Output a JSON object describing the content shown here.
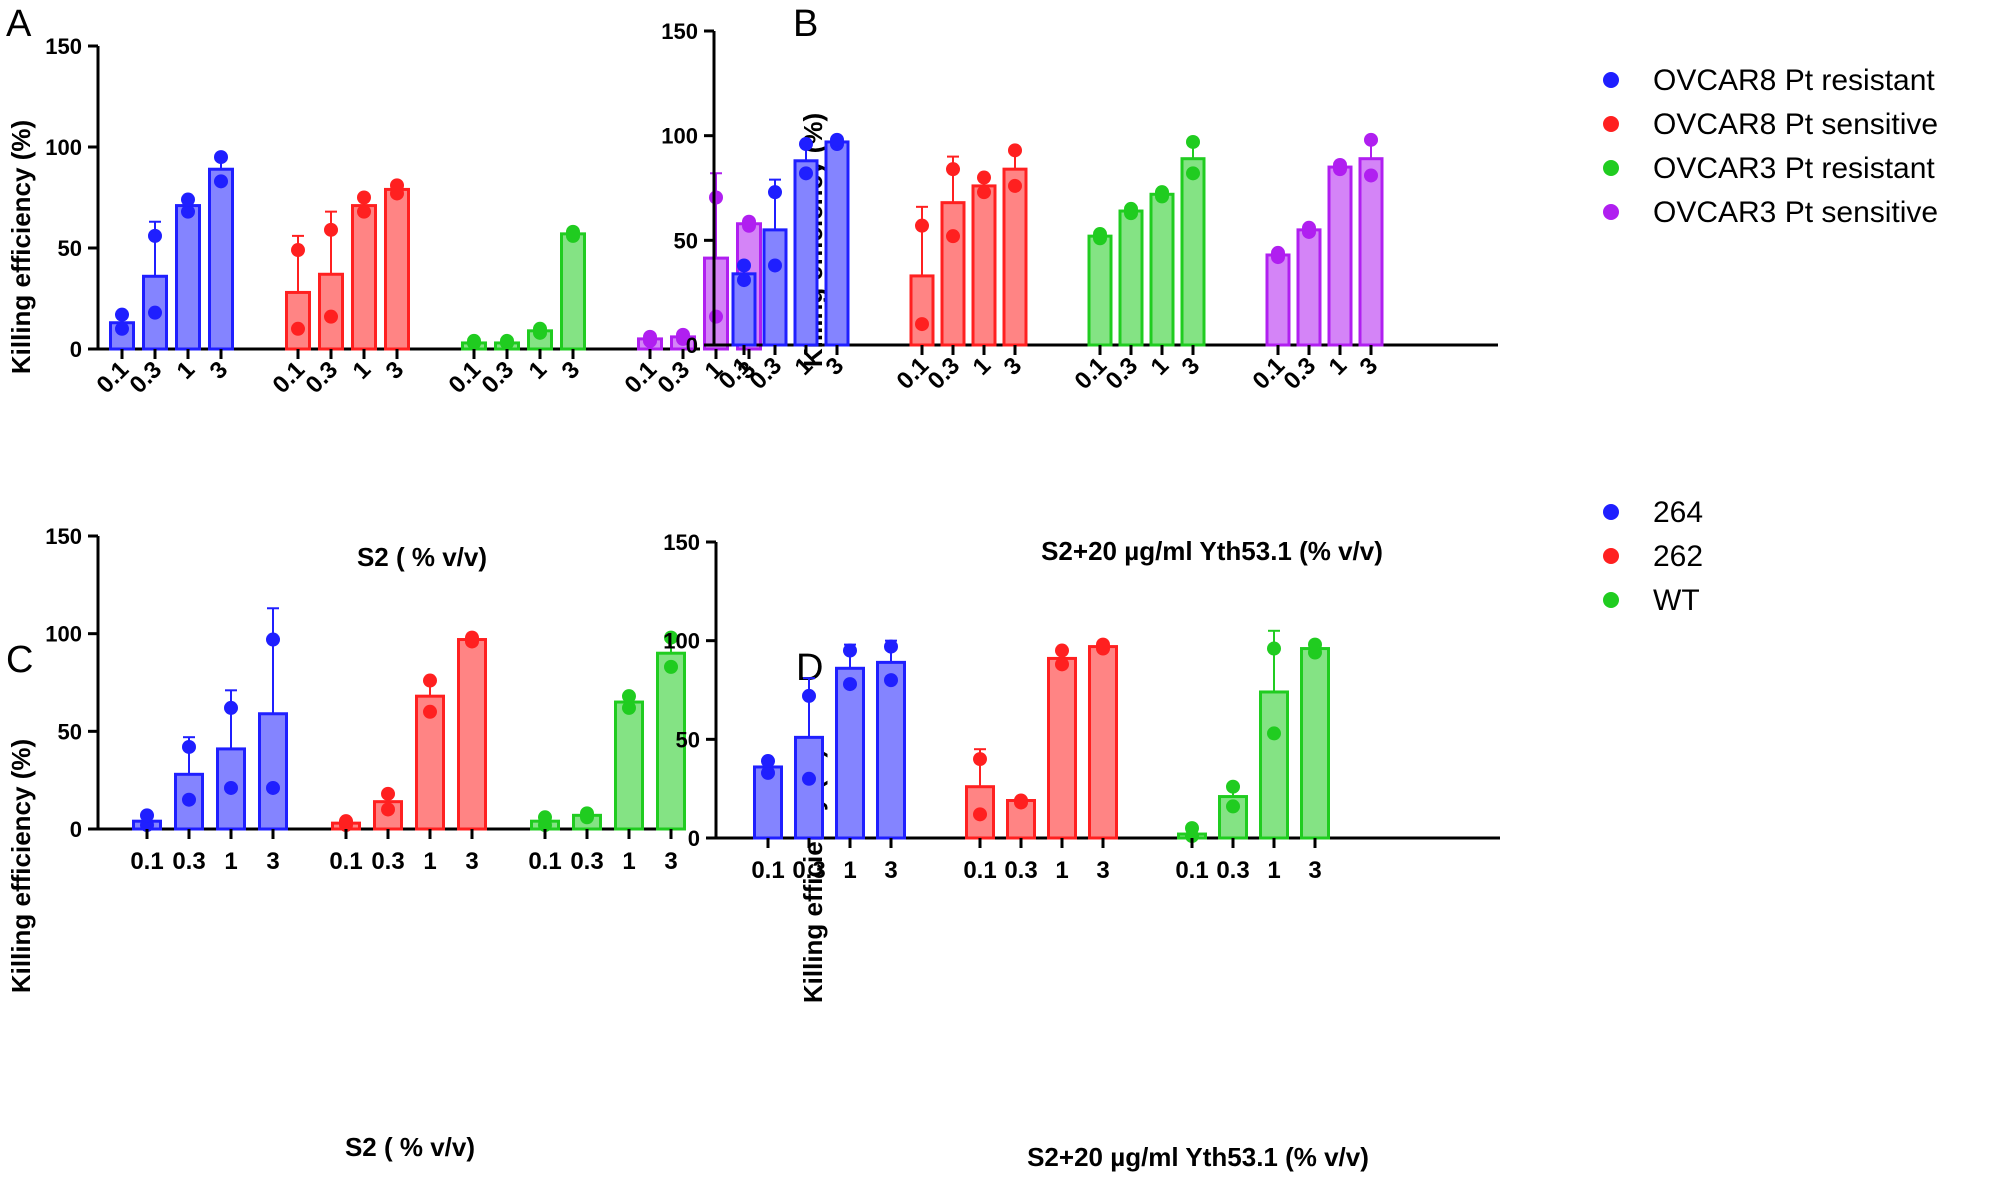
{
  "colors": {
    "blue": "#1f1fff",
    "red": "#ff2020",
    "green": "#20cc20",
    "purple": "#b01ff0"
  },
  "chart_data": [
    {
      "panel": "A",
      "type": "bar",
      "ylabel": "Killing efficiency (%)",
      "xlabel": "S2 ( % v/v)",
      "ylim": [
        0,
        150
      ],
      "yticks": [
        0,
        50,
        100,
        150
      ],
      "category_labels": [
        "0.1",
        "0.3",
        "1",
        "3"
      ],
      "label_style": "rotated",
      "groups": [
        {
          "name": "OVCAR8 Pt resistant",
          "color": "blue",
          "means": [
            13,
            36,
            71,
            89
          ],
          "errors": [
            3,
            27,
            3,
            5
          ],
          "points": [
            [
              10,
              17
            ],
            [
              18,
              56
            ],
            [
              68,
              74
            ],
            [
              83,
              95
            ]
          ]
        },
        {
          "name": "OVCAR8 Pt sensitive",
          "color": "red",
          "means": [
            28,
            37,
            71,
            79
          ],
          "errors": [
            28,
            31,
            3,
            2
          ],
          "points": [
            [
              10,
              49
            ],
            [
              16,
              59
            ],
            [
              68,
              75
            ],
            [
              77,
              81
            ]
          ]
        },
        {
          "name": "OVCAR3 Pt resistant",
          "color": "green",
          "means": [
            3,
            3,
            9,
            57
          ],
          "errors": [
            1,
            1,
            2,
            1
          ],
          "points": [
            [
              3,
              4
            ],
            [
              3,
              4
            ],
            [
              8,
              10
            ],
            [
              56,
              58
            ]
          ]
        },
        {
          "name": "OVCAR3 Pt sensitive",
          "color": "purple",
          "means": [
            5,
            6,
            45,
            62
          ],
          "errors": [
            1,
            1,
            42,
            1
          ],
          "points": [
            [
              4,
              6
            ],
            [
              5,
              7
            ],
            [
              16,
              75
            ],
            [
              61,
              63
            ]
          ]
        }
      ]
    },
    {
      "panel": "B",
      "type": "bar",
      "ylabel": "Killing efficiency (%)",
      "xlabel": "S2+20 µg/ml Yth53.1 (% v/v)",
      "ylim": [
        0,
        150
      ],
      "yticks": [
        0,
        50,
        100,
        150
      ],
      "category_labels": [
        "0.1",
        "0.3",
        "1",
        "3"
      ],
      "label_style": "rotated",
      "groups": [
        {
          "name": "OVCAR8 Pt resistant",
          "color": "blue",
          "means": [
            34,
            55,
            88,
            97
          ],
          "errors": [
            4,
            24,
            8,
            1
          ],
          "points": [
            [
              31,
              38
            ],
            [
              38,
              73
            ],
            [
              82,
              96
            ],
            [
              96,
              98
            ]
          ]
        },
        {
          "name": "OVCAR8 Pt sensitive",
          "color": "red",
          "means": [
            33,
            68,
            76,
            84
          ],
          "errors": [
            33,
            22,
            4,
            8
          ],
          "points": [
            [
              10,
              57
            ],
            [
              52,
              84
            ],
            [
              73,
              80
            ],
            [
              76,
              93
            ]
          ]
        },
        {
          "name": "OVCAR3 Pt resistant",
          "color": "green",
          "means": [
            52,
            64,
            72,
            89
          ],
          "errors": [
            1,
            1,
            1,
            8
          ],
          "points": [
            [
              51,
              53
            ],
            [
              63,
              65
            ],
            [
              71,
              73
            ],
            [
              82,
              97
            ]
          ]
        },
        {
          "name": "OVCAR3 Pt sensitive",
          "color": "purple",
          "means": [
            43,
            55,
            85,
            89
          ],
          "errors": [
            1,
            1,
            1,
            9
          ],
          "points": [
            [
              42,
              44
            ],
            [
              54,
              56
            ],
            [
              84,
              86
            ],
            [
              81,
              98
            ]
          ]
        }
      ]
    },
    {
      "panel": "C",
      "type": "bar",
      "ylabel": "Killing efficiency (%)",
      "xlabel": "S2 ( % v/v)",
      "ylim": [
        0,
        150
      ],
      "yticks": [
        0,
        50,
        100,
        150
      ],
      "category_labels": [
        "0.1",
        "0.3",
        "1",
        "3"
      ],
      "label_style": "flat",
      "groups": [
        {
          "name": "264",
          "color": "blue",
          "means": [
            4,
            28,
            41,
            59
          ],
          "errors": [
            3,
            19,
            30,
            54
          ],
          "points": [
            [
              2,
              7
            ],
            [
              15,
              42
            ],
            [
              21,
              62
            ],
            [
              21,
              97
            ]
          ]
        },
        {
          "name": "262",
          "color": "red",
          "means": [
            3,
            14,
            68,
            97
          ],
          "errors": [
            1,
            4,
            8,
            1
          ],
          "points": [
            [
              2,
              4
            ],
            [
              10,
              18
            ],
            [
              60,
              76
            ],
            [
              96,
              98
            ]
          ]
        },
        {
          "name": "WT",
          "color": "green",
          "means": [
            4,
            7,
            65,
            90
          ],
          "errors": [
            2,
            1,
            3,
            9
          ],
          "points": [
            [
              2,
              6
            ],
            [
              6,
              8
            ],
            [
              62,
              68
            ],
            [
              83,
              98
            ]
          ]
        }
      ]
    },
    {
      "panel": "D",
      "type": "bar",
      "ylabel": "Killing efficiency (%)",
      "xlabel": "S2+20 µg/ml Yth53.1 (% v/v)",
      "ylim": [
        0,
        150
      ],
      "yticks": [
        0,
        50,
        100,
        150
      ],
      "category_labels": [
        "0.1",
        "0.3",
        "1",
        "3"
      ],
      "label_style": "flat",
      "groups": [
        {
          "name": "264",
          "color": "blue",
          "means": [
            36,
            51,
            86,
            89
          ],
          "errors": [
            3,
            30,
            12,
            11
          ],
          "points": [
            [
              33,
              39
            ],
            [
              30,
              72
            ],
            [
              78,
              95
            ],
            [
              80,
              97
            ]
          ]
        },
        {
          "name": "262",
          "color": "red",
          "means": [
            26,
            19,
            91,
            97
          ],
          "errors": [
            19,
            1,
            4,
            1
          ],
          "points": [
            [
              12,
              40
            ],
            [
              18,
              19
            ],
            [
              88,
              95
            ],
            [
              96,
              98
            ]
          ]
        },
        {
          "name": "WT",
          "color": "green",
          "means": [
            2,
            21,
            74,
            96
          ],
          "errors": [
            4,
            6,
            31,
            3
          ],
          "points": [
            [
              1,
              5
            ],
            [
              16,
              26
            ],
            [
              53,
              96
            ],
            [
              94,
              98
            ]
          ]
        }
      ]
    }
  ],
  "legends": [
    {
      "entries": [
        {
          "label": "OVCAR8 Pt resistant",
          "color": "blue"
        },
        {
          "label": "OVCAR8 Pt sensitive",
          "color": "red"
        },
        {
          "label": "OVCAR3 Pt resistant",
          "color": "green"
        },
        {
          "label": "OVCAR3 Pt sensitive",
          "color": "purple"
        }
      ]
    },
    {
      "entries": [
        {
          "label": "264",
          "color": "blue"
        },
        {
          "label": "262",
          "color": "red"
        },
        {
          "label": "WT",
          "color": "green"
        }
      ]
    }
  ]
}
